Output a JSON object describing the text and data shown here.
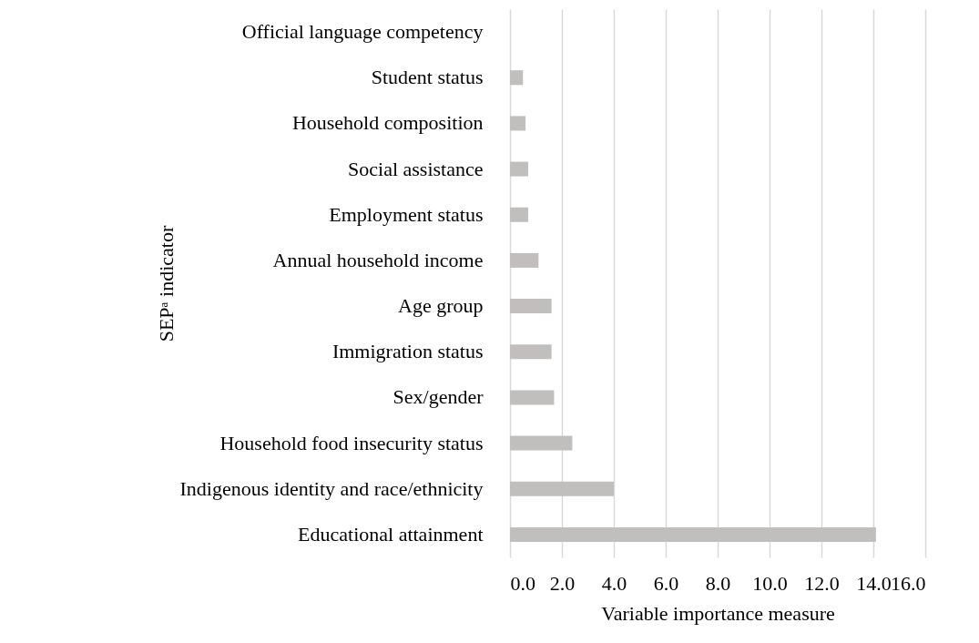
{
  "chart_data": {
    "type": "bar",
    "orientation": "horizontal",
    "ylabel": "SEPᵃ indicator",
    "xlabel": "Variable importance measure",
    "categories": [
      "Official language competency",
      "Student status",
      "Household composition",
      "Social assistance",
      "Employment status",
      "Annual household income",
      "Age group",
      "Immigration status",
      "Sex/gender",
      "Household food insecurity status",
      "Indigenous identity and race/ethnicity",
      "Educational attainment"
    ],
    "values": [
      0.0,
      0.5,
      0.6,
      0.7,
      0.7,
      1.1,
      1.6,
      1.6,
      1.7,
      2.4,
      4.0,
      14.1
    ],
    "color": "#c0bfbd",
    "xlim": [
      0,
      16
    ],
    "xticks": [
      {
        "value": 0,
        "label": "0.0"
      },
      {
        "value": 2,
        "label": "2.0"
      },
      {
        "value": 4,
        "label": "4.0"
      },
      {
        "value": 6,
        "label": "6.0"
      },
      {
        "value": 8,
        "label": "8.0"
      },
      {
        "value": 10,
        "label": "10.0"
      },
      {
        "value": 12,
        "label": "12.0"
      },
      {
        "value": 14,
        "label": "14.0"
      },
      {
        "value": 16,
        "label": "16.0"
      }
    ],
    "grid": "x"
  }
}
